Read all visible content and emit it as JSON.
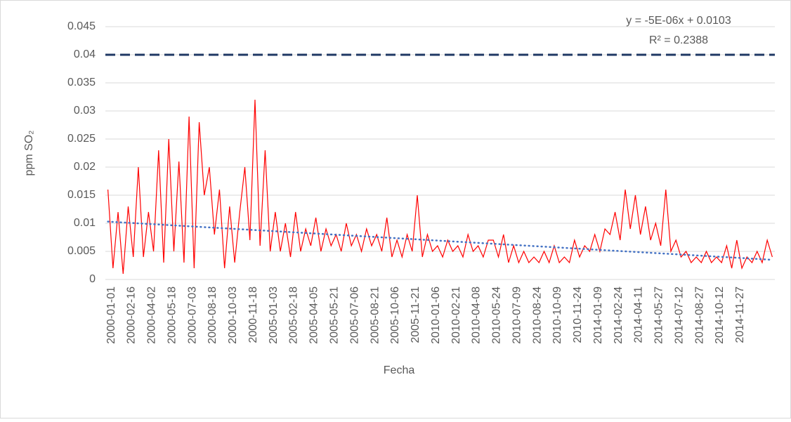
{
  "chart_data": {
    "type": "line",
    "ylabel": "ppm SO₂",
    "xlabel": "Fecha",
    "categories": [
      "2000-01-01",
      null,
      null,
      null,
      "2000-02-16",
      null,
      null,
      null,
      "2000-04-02",
      null,
      null,
      null,
      "2000-05-18",
      null,
      null,
      null,
      "2000-07-03",
      null,
      null,
      null,
      "2000-08-18",
      null,
      null,
      null,
      "2000-10-03",
      null,
      null,
      null,
      "2000-11-18",
      null,
      null,
      null,
      "2005-01-03",
      null,
      null,
      null,
      "2005-02-18",
      null,
      null,
      null,
      "2005-04-05",
      null,
      null,
      null,
      "2005-05-21",
      null,
      null,
      null,
      "2005-07-06",
      null,
      null,
      null,
      "2005-08-21",
      null,
      null,
      null,
      "2005-10-06",
      null,
      null,
      null,
      "2005-11-21",
      null,
      null,
      null,
      "2010-01-06",
      null,
      null,
      null,
      "2010-02-21",
      null,
      null,
      null,
      "2010-04-08",
      null,
      null,
      null,
      "2010-05-24",
      null,
      null,
      null,
      "2010-07-09",
      null,
      null,
      null,
      "2010-08-24",
      null,
      null,
      null,
      "2010-10-09",
      null,
      null,
      null,
      "2010-11-24",
      null,
      null,
      null,
      "2014-01-09",
      null,
      null,
      null,
      "2014-02-24",
      null,
      null,
      null,
      "2014-04-11",
      null,
      null,
      null,
      "2014-05-27",
      null,
      null,
      null,
      "2014-07-12",
      null,
      null,
      null,
      "2014-08-27",
      null,
      null,
      null,
      "2014-10-12",
      null,
      null,
      null,
      "2014-11-27",
      null,
      null,
      null,
      null,
      null,
      null,
      null
    ],
    "series": [
      {
        "color": "#ff0000",
        "values": [
          0.016,
          0.002,
          0.012,
          0.001,
          0.013,
          0.004,
          0.02,
          0.004,
          0.012,
          0.005,
          0.023,
          0.003,
          0.025,
          0.005,
          0.021,
          0.003,
          0.029,
          0.002,
          0.028,
          0.015,
          0.02,
          0.008,
          0.016,
          0.002,
          0.013,
          0.003,
          0.012,
          0.02,
          0.007,
          0.032,
          0.006,
          0.023,
          0.005,
          0.012,
          0.005,
          0.01,
          0.004,
          0.012,
          0.005,
          0.009,
          0.006,
          0.011,
          0.005,
          0.009,
          0.006,
          0.008,
          0.005,
          0.01,
          0.006,
          0.008,
          0.005,
          0.009,
          0.006,
          0.008,
          0.005,
          0.011,
          0.004,
          0.007,
          0.004,
          0.008,
          0.005,
          0.015,
          0.004,
          0.008,
          0.005,
          0.006,
          0.004,
          0.007,
          0.005,
          0.006,
          0.004,
          0.008,
          0.005,
          0.006,
          0.004,
          0.007,
          0.007,
          0.004,
          0.008,
          0.003,
          0.006,
          0.003,
          0.005,
          0.003,
          0.004,
          0.003,
          0.005,
          0.003,
          0.006,
          0.003,
          0.004,
          0.003,
          0.007,
          0.004,
          0.006,
          0.005,
          0.008,
          0.005,
          0.009,
          0.008,
          0.012,
          0.007,
          0.016,
          0.009,
          0.015,
          0.008,
          0.013,
          0.007,
          0.01,
          0.006,
          0.016,
          0.005,
          0.007,
          0.004,
          0.005,
          0.003,
          0.004,
          0.003,
          0.005,
          0.003,
          0.004,
          0.003,
          0.006,
          0.002,
          0.007,
          0.002,
          0.004,
          0.003,
          0.005,
          0.003,
          0.007,
          0.004
        ]
      }
    ],
    "reference_line": {
      "value": 0.04,
      "color": "#1f3864"
    },
    "trendline": {
      "color": "#4472c4",
      "values": [
        0.0103,
        0.0035
      ],
      "equation": "y = -5E-06x + 0.0103",
      "r_squared": "R² = 0.2388"
    },
    "ylim": [
      0,
      0.045
    ],
    "yticks": [
      0,
      0.005,
      0.01,
      0.015,
      0.02,
      0.025,
      0.03,
      0.035,
      0.04,
      0.045
    ],
    "grid": true
  }
}
